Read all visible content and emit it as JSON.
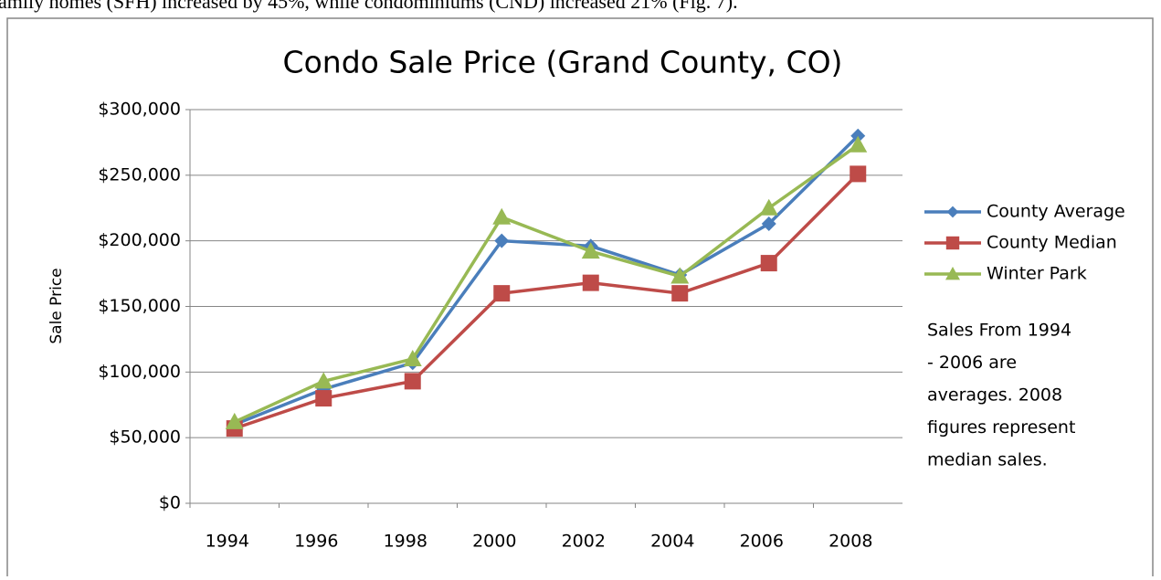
{
  "caption": "amily homes (SFH) increased by 45%, while condominiums (CND) increased 21% (Fig. 7).",
  "chart_data": {
    "type": "line",
    "title": "Condo Sale Price (Grand County, CO)",
    "ylabel": "Sale Price",
    "categories": [
      "1994",
      "1996",
      "1998",
      "2000",
      "2002",
      "2004",
      "2006",
      "2008"
    ],
    "series": [
      {
        "name": "County Average",
        "color": "#4a7ebb",
        "marker": "diamond",
        "values": [
          60000,
          87000,
          107000,
          200000,
          196000,
          174000,
          213000,
          280000
        ]
      },
      {
        "name": "County Median",
        "color": "#be4b48",
        "marker": "square",
        "values": [
          57000,
          80000,
          93000,
          160000,
          168000,
          160000,
          183000,
          251000
        ]
      },
      {
        "name": "Winter Park",
        "color": "#98b954",
        "marker": "triangle",
        "values": [
          62000,
          93000,
          110000,
          218000,
          192000,
          173000,
          225000,
          273000
        ]
      }
    ],
    "ylim": [
      0,
      300000
    ],
    "yticks": [
      {
        "value": 0,
        "label": "$0"
      },
      {
        "value": 50000,
        "label": "$50,000"
      },
      {
        "value": 100000,
        "label": "$100,000"
      },
      {
        "value": 150000,
        "label": "$150,000"
      },
      {
        "value": 200000,
        "label": "$200,000"
      },
      {
        "value": 250000,
        "label": "$250,000"
      },
      {
        "value": 300000,
        "label": "$300,000"
      }
    ],
    "grid": true,
    "legend": "right",
    "annotation": [
      "Sales From 1994",
      "- 2006 are",
      "averages. 2008",
      "figures represent",
      "median sales."
    ]
  }
}
